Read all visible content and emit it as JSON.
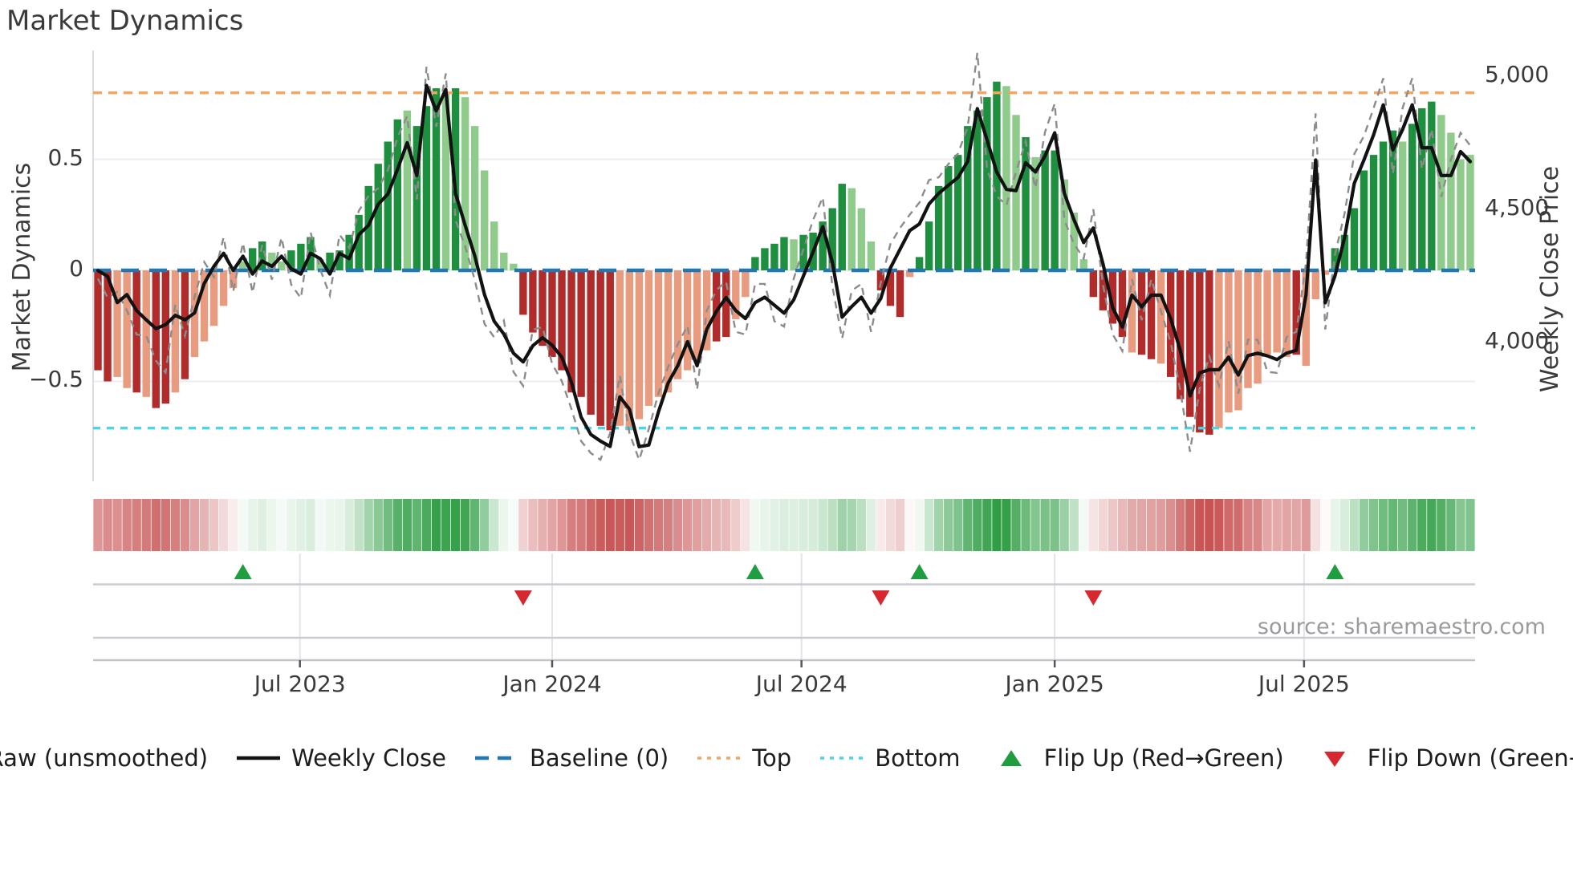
{
  "title": "Market Dynamics",
  "source": "source: sharemaestro.com",
  "axes": {
    "left_label": "Market Dynamics",
    "right_label": "Weekly Close Price",
    "left_ticks": [
      {
        "label": "0.5",
        "value": 0.5
      },
      {
        "label": "0",
        "value": 0.0
      },
      {
        "label": "−0.5",
        "value": -0.5
      }
    ],
    "right_ticks": [
      {
        "label": "5,000",
        "value": 5000
      },
      {
        "label": "4,500",
        "value": 4500
      },
      {
        "label": "4,000",
        "value": 4000
      }
    ],
    "x_ticks": [
      {
        "label": "Jul 2023",
        "week": 21.4
      },
      {
        "label": "Jan 2024",
        "week": 47.5
      },
      {
        "label": "Jul 2024",
        "week": 73.3
      },
      {
        "label": "Jan 2025",
        "week": 99.5
      },
      {
        "label": "Jul 2025",
        "week": 125.3
      }
    ]
  },
  "legend": [
    {
      "label": "Raw (unsmoothed)",
      "glyph": "dash-gray"
    },
    {
      "label": "Weekly Close",
      "glyph": "solid-black"
    },
    {
      "label": "Baseline (0)",
      "glyph": "dash-blue"
    },
    {
      "label": "Top",
      "glyph": "dot-orange"
    },
    {
      "label": "Bottom",
      "glyph": "dot-cyan"
    },
    {
      "label": "Flip Up (Red→Green)",
      "glyph": "tri-up"
    },
    {
      "label": "Flip Down (Green→Red)",
      "glyph": "tri-down"
    }
  ],
  "chart_data": {
    "type": "bar",
    "weeks": 143,
    "title": "Market Dynamics",
    "ylabel_left": "Market Dynamics",
    "ylabel_right": "Weekly Close Price",
    "delta_ylim": [
      -0.95,
      0.99
    ],
    "price_ylim": [
      3479,
      5096
    ],
    "baseline": 0,
    "top_threshold": 0.8,
    "bottom_threshold": -0.71,
    "grid": "horizontal-only",
    "legend_position": "bottom-center",
    "delta": [
      -0.45,
      -0.5,
      -0.48,
      -0.53,
      -0.55,
      -0.57,
      -0.62,
      -0.6,
      -0.55,
      -0.49,
      -0.39,
      -0.32,
      -0.25,
      -0.16,
      -0.08,
      0.04,
      0.1,
      0.13,
      0.08,
      0.04,
      0.09,
      0.12,
      0.15,
      0.05,
      0.08,
      0.09,
      0.16,
      0.25,
      0.38,
      0.48,
      0.58,
      0.68,
      0.72,
      0.65,
      0.74,
      0.82,
      0.8,
      0.82,
      0.78,
      0.65,
      0.45,
      0.22,
      0.08,
      0.03,
      -0.2,
      -0.28,
      -0.34,
      -0.39,
      -0.45,
      -0.55,
      -0.57,
      -0.65,
      -0.7,
      -0.72,
      -0.7,
      -0.72,
      -0.67,
      -0.61,
      -0.57,
      -0.55,
      -0.49,
      -0.45,
      -0.41,
      -0.36,
      -0.32,
      -0.3,
      -0.22,
      -0.12,
      0.06,
      0.1,
      0.12,
      0.15,
      0.14,
      0.16,
      0.17,
      0.22,
      0.28,
      0.39,
      0.37,
      0.28,
      0.13,
      -0.09,
      -0.16,
      -0.21,
      -0.03,
      0.06,
      0.22,
      0.38,
      0.47,
      0.52,
      0.65,
      0.72,
      0.78,
      0.85,
      0.83,
      0.7,
      0.6,
      0.51,
      0.54,
      0.54,
      0.41,
      0.26,
      0.05,
      -0.12,
      -0.18,
      -0.24,
      -0.3,
      -0.37,
      -0.38,
      -0.4,
      -0.42,
      -0.48,
      -0.58,
      -0.66,
      -0.73,
      -0.74,
      -0.71,
      -0.64,
      -0.63,
      -0.53,
      -0.51,
      -0.38,
      -0.37,
      -0.39,
      -0.38,
      -0.43,
      -0.13,
      -0.02,
      0.1,
      0.16,
      0.28,
      0.45,
      0.52,
      0.58,
      0.63,
      0.58,
      0.66,
      0.73,
      0.76,
      0.7,
      0.62,
      0.5,
      0.52
    ],
    "delta_shade": "DDLLDLDDLDLLLLLgGGggGGGgGGGGGGGGgGGGgGggggggDDDDDDDDDDLLLLLLLLLLDDLLGGGGgGGGGGgggDDDLGGGGGGGGGggGgGGgggDDDDLDDLDDDDDLLLLLLLLDLLLGGGGGGGgGGGgggg",
    "close": [
      4270,
      4248,
      4150,
      4180,
      4120,
      4085,
      4052,
      4067,
      4102,
      4085,
      4111,
      4222,
      4286,
      4335,
      4271,
      4324,
      4257,
      4306,
      4286,
      4324,
      4277,
      4257,
      4335,
      4315,
      4257,
      4335,
      4315,
      4405,
      4440,
      4519,
      4557,
      4650,
      4750,
      4627,
      4965,
      4870,
      4950,
      4560,
      4440,
      4324,
      4180,
      4080,
      4032,
      3960,
      3927,
      3988,
      4018,
      3990,
      3945,
      3850,
      3720,
      3655,
      3630,
      3610,
      3796,
      3750,
      3609,
      3615,
      3740,
      3848,
      3913,
      4003,
      3913,
      4050,
      4117,
      4169,
      4120,
      4090,
      4150,
      4170,
      4140,
      4110,
      4160,
      4250,
      4340,
      4435,
      4300,
      4095,
      4135,
      4170,
      4110,
      4165,
      4280,
      4350,
      4420,
      4445,
      4520,
      4560,
      4590,
      4620,
      4680,
      4878,
      4760,
      4640,
      4575,
      4570,
      4675,
      4640,
      4700,
      4787,
      4560,
      4460,
      4375,
      4430,
      4295,
      4131,
      4058,
      4178,
      4134,
      4178,
      4178,
      4090,
      3970,
      3800,
      3886,
      3898,
      3898,
      3945,
      3878,
      3951,
      3960,
      3950,
      3936,
      3960,
      3971,
      4178,
      4685,
      4149,
      4250,
      4394,
      4598,
      4685,
      4780,
      4892,
      4723,
      4800,
      4892,
      4731,
      4731,
      4627,
      4627,
      4717,
      4679
    ],
    "raw": [
      4240,
      4168,
      4190,
      4120,
      4030,
      4025,
      3932,
      3887,
      4142,
      4025,
      4171,
      4302,
      4246,
      4395,
      4191,
      4374,
      4187,
      4366,
      4236,
      4394,
      4217,
      4167,
      4415,
      4275,
      4177,
      4405,
      4355,
      4495,
      4550,
      4579,
      4647,
      4770,
      4850,
      4537,
      5035,
      4810,
      5010,
      4460,
      4360,
      4234,
      4070,
      4020,
      4082,
      3890,
      3837,
      4048,
      4058,
      3920,
      3855,
      3750,
      3630,
      3585,
      3560,
      3660,
      3876,
      3660,
      3559,
      3675,
      3810,
      3908,
      3993,
      4063,
      3823,
      4120,
      4197,
      4229,
      4040,
      4030,
      4220,
      4220,
      4080,
      4060,
      4240,
      4350,
      4460,
      4545,
      4210,
      4015,
      4195,
      4220,
      4040,
      4225,
      4370,
      4430,
      4480,
      4525,
      4610,
      4620,
      4670,
      4710,
      4810,
      5088,
      4650,
      4550,
      4515,
      4640,
      4755,
      4580,
      4790,
      4897,
      4460,
      4370,
      4315,
      4500,
      4215,
      4031,
      3968,
      4238,
      4084,
      4238,
      4118,
      4000,
      3820,
      3590,
      3826,
      3948,
      3838,
      4005,
      3808,
      4011,
      4010,
      3890,
      3886,
      4020,
      4041,
      4298,
      4860,
      4049,
      4330,
      4484,
      4708,
      4775,
      4880,
      4992,
      4633,
      4880,
      4992,
      4651,
      4801,
      4547,
      4687,
      4787,
      4739
    ],
    "flip_up_weeks": [
      15,
      68,
      85,
      128
    ],
    "flip_down_weeks": [
      44,
      81,
      103
    ],
    "colors": {
      "bar_dark_red": "#B22B2B",
      "bar_light_red": "#E89B7E",
      "bar_dark_green": "#1E8F3E",
      "bar_light_green": "#8FCB8A",
      "close_line": "#121212",
      "raw_line": "#8C8C8C",
      "baseline": "#1F77B4",
      "top_line": "#F2A663",
      "bottom_line": "#4FD4E4",
      "flip_up": "#1E9E3E",
      "flip_down": "#D7282F",
      "heat_red": "#C03939",
      "heat_green": "#2F9E44"
    }
  }
}
